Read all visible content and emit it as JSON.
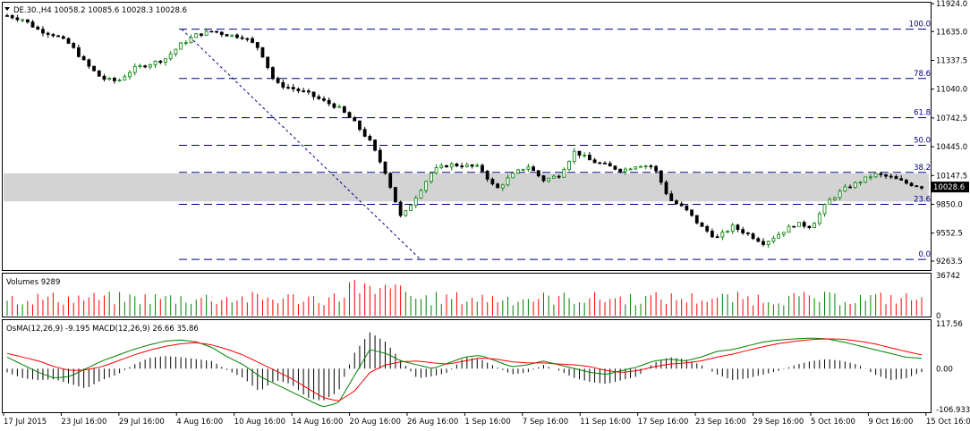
{
  "symbol_header": "DE.30.,H4  10058.2 10085.6 10028.3 10028.6",
  "menu_icon": "triangle-down-icon",
  "colors": {
    "background": "#ffffff",
    "panel_border": "#000000",
    "bull_candle": "#008000",
    "bear_candle": "#000000",
    "fib_line": "#000080",
    "fib_label": "#000080",
    "band_fill": "#d3d3d3",
    "volume_up": "#008000",
    "volume_down": "#ff0000",
    "osma": "#000000",
    "macd_main": "#008000",
    "macd_signal": "#ff0000",
    "price_label_bg": "#000000",
    "price_label_text": "#ffffff"
  },
  "chart_data": [
    {
      "type": "candlestick",
      "title": "DE.30.,H4",
      "ohlc_header": {
        "open": 10058.2,
        "high": 10085.6,
        "low": 10028.3,
        "close": 10028.6
      },
      "current_price": 10028.6,
      "ylim": [
        9180,
        11924
      ],
      "y_ticks": [
        "11924.0",
        "11635.0",
        "11337.5",
        "11040.0",
        "10742.5",
        "10445.0",
        "10147.5",
        "9850.0",
        "9552.5",
        "9263.5"
      ],
      "x_ticks": [
        "17 Jul 2015",
        "23 Jul 16:00",
        "29 Jul 16:00",
        "4 Aug 16:00",
        "10 Aug 16:00",
        "14 Aug 16:00",
        "20 Aug 16:00",
        "26 Aug 16:00",
        "1 Sep 16:00",
        "7 Sep 16:00",
        "11 Sep 16:00",
        "17 Sep 16:00",
        "23 Sep 16:00",
        "29 Sep 16:00",
        "5 Oct 16:00",
        "9 Oct 16:00",
        "15 Oct 16:00"
      ],
      "close_path": [
        11800,
        11760,
        11650,
        11600,
        11500,
        11300,
        11150,
        11120,
        11250,
        11300,
        11350,
        11500,
        11600,
        11640,
        11600,
        11580,
        11460,
        11100,
        11050,
        11000,
        10920,
        10850,
        10700,
        10500,
        10180,
        9700,
        9950,
        10200,
        10260,
        10250,
        10230,
        10000,
        10150,
        10250,
        10100,
        10150,
        10400,
        10300,
        10250,
        10200,
        10260,
        10240,
        9900,
        9800,
        9620,
        9500,
        9620,
        9540,
        9450,
        9550,
        9650,
        9620,
        9870,
        10000,
        10080,
        10160,
        10130,
        10070,
        10030
      ],
      "fibonacci": [
        {
          "level": "100.0",
          "price": 11660
        },
        {
          "level": "78.6",
          "price": 11150
        },
        {
          "level": "61.8",
          "price": 10745
        },
        {
          "level": "50.0",
          "price": 10460
        },
        {
          "level": "38.2",
          "price": 10180
        },
        {
          "level": "23.6",
          "price": 9850
        },
        {
          "level": "0.0",
          "price": 9280
        }
      ],
      "shaded_band": [
        9880,
        10170
      ]
    },
    {
      "type": "bar",
      "title": "Volumes 9289",
      "ylim": [
        0,
        36742
      ],
      "y_ticks": [
        "36742",
        "0"
      ]
    },
    {
      "type": "line",
      "title": "OsMA(12,26,9) -9.195  MACD(12,26,9) 26.66 35.86",
      "ylim": [
        -106.933,
        117.56
      ],
      "y_ticks": [
        "117.56",
        "0.00",
        "-106.933"
      ],
      "series": [
        {
          "name": "OsMA",
          "values": [
            -10,
            -25,
            -30,
            -28,
            -40,
            -52,
            -30,
            -15,
            10,
            28,
            33,
            30,
            25,
            20,
            -5,
            -25,
            -60,
            -30,
            -40,
            -75,
            -85,
            -60,
            40,
            95,
            70,
            20,
            -25,
            -20,
            -10,
            30,
            25,
            5,
            -15,
            -10,
            10,
            -5,
            -25,
            -35,
            -40,
            -30,
            -20,
            15,
            30,
            25,
            10,
            -15,
            -30,
            -25,
            -15,
            -5,
            10,
            20,
            25,
            20,
            10,
            -15,
            -30,
            -25,
            -9
          ]
        },
        {
          "name": "MACD",
          "values": [
            30,
            10,
            -10,
            -25,
            -20,
            0,
            20,
            35,
            50,
            62,
            72,
            75,
            70,
            55,
            30,
            10,
            -20,
            -40,
            -60,
            -80,
            -100,
            -90,
            -20,
            50,
            40,
            20,
            10,
            0,
            15,
            30,
            35,
            20,
            5,
            10,
            20,
            10,
            0,
            -10,
            -15,
            -5,
            5,
            20,
            25,
            20,
            30,
            45,
            50,
            60,
            70,
            75,
            78,
            80,
            78,
            70,
            60,
            50,
            40,
            30,
            27
          ]
        },
        {
          "name": "Signal",
          "values": [
            40,
            30,
            20,
            5,
            -5,
            -3,
            5,
            20,
            35,
            48,
            58,
            65,
            68,
            62,
            50,
            35,
            15,
            -5,
            -25,
            -50,
            -75,
            -85,
            -60,
            -10,
            10,
            18,
            20,
            15,
            12,
            20,
            28,
            25,
            18,
            15,
            15,
            12,
            10,
            5,
            -5,
            -10,
            -5,
            5,
            12,
            15,
            20,
            30,
            38,
            48,
            58,
            66,
            72,
            76,
            78,
            77,
            72,
            65,
            55,
            45,
            36
          ]
        }
      ]
    }
  ]
}
